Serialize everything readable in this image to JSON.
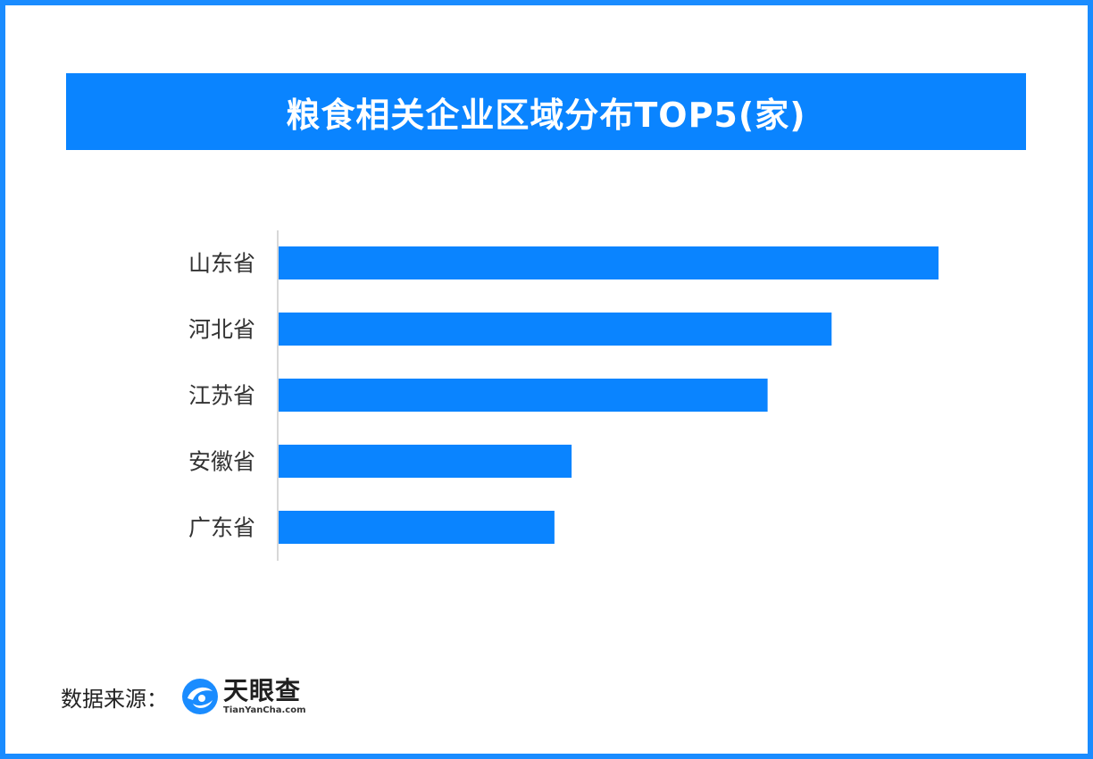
{
  "chart_data": {
    "type": "bar",
    "orientation": "horizontal",
    "title": "粮食相关企业区域分布TOP5(家)",
    "categories": [
      "山东省",
      "河北省",
      "江苏省",
      "安徽省",
      "广东省"
    ],
    "values": [
      100,
      83.8,
      74.1,
      44.4,
      41.8
    ],
    "xlim": [
      0,
      100
    ],
    "grid": false,
    "bar_color": "#0a84ff"
  },
  "footer": {
    "source_label": "数据来源：",
    "logo_cn": "天眼查",
    "logo_en": "TianYanCha.com"
  },
  "colors": {
    "border": "#1a8cff",
    "title_bg": "#0a84ff",
    "bar": "#0a84ff",
    "axis": "#cccccc",
    "label": "#333333"
  }
}
